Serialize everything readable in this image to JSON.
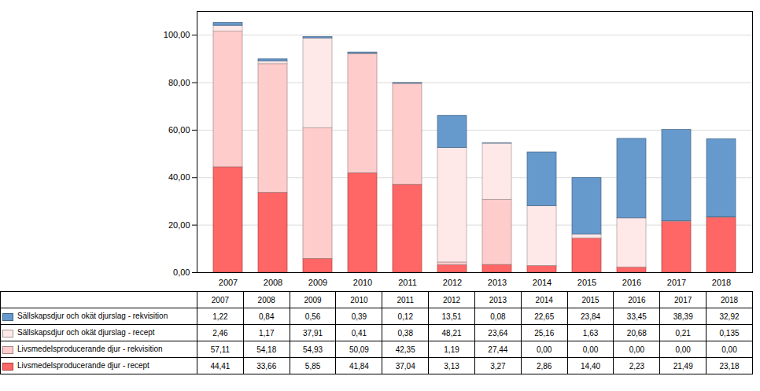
{
  "chart_data": {
    "type": "bar",
    "stacked": true,
    "categories": [
      "2007",
      "2008",
      "2009",
      "2010",
      "2011",
      "2012",
      "2013",
      "2014",
      "2015",
      "2016",
      "2017",
      "2018"
    ],
    "series": [
      {
        "name": "Livsmedelsproducerande djur - recept",
        "color": "#FF6666",
        "values": [
          44.41,
          33.66,
          5.85,
          41.84,
          37.04,
          3.13,
          3.27,
          2.86,
          14.4,
          2.23,
          21.49,
          23.18
        ],
        "value_labels": [
          "44,41",
          "33,66",
          "5,85",
          "41,84",
          "37,04",
          "3,13",
          "3,27",
          "2,86",
          "14,40",
          "2,23",
          "21,49",
          "23,18"
        ]
      },
      {
        "name": "Livsmedelsproducerande djur - rekvisition",
        "color": "#FFCCCC",
        "values": [
          57.11,
          54.18,
          54.93,
          50.09,
          42.35,
          1.19,
          27.44,
          0.0,
          0.0,
          0.0,
          0.0,
          0.0
        ],
        "value_labels": [
          "57,11",
          "54,18",
          "54,93",
          "50,09",
          "42,35",
          "1,19",
          "27,44",
          "0,00",
          "0,00",
          "0,00",
          "0,00",
          "0,00"
        ]
      },
      {
        "name": "Sällskapsdjur och okät djurslag - recept",
        "color": "#FFE8E8",
        "values": [
          2.46,
          1.17,
          37.91,
          0.41,
          0.38,
          48.21,
          23.64,
          25.16,
          1.63,
          20.68,
          0.21,
          0.135
        ],
        "value_labels": [
          "2,46",
          "1,17",
          "37,91",
          "0,41",
          "0,38",
          "48,21",
          "23,64",
          "25,16",
          "1,63",
          "20,68",
          "0,21",
          "0,135"
        ]
      },
      {
        "name": "Sällskapsdjur och okät djurslag - rekvisition",
        "color": "#6699CC",
        "values": [
          1.22,
          0.84,
          0.56,
          0.39,
          0.12,
          13.51,
          0.08,
          22.65,
          23.84,
          33.45,
          38.39,
          32.92
        ],
        "value_labels": [
          "1,22",
          "0,84",
          "0,56",
          "0,39",
          "0,12",
          "13,51",
          "0,08",
          "22,65",
          "23,84",
          "33,45",
          "38,39",
          "32,92"
        ]
      }
    ],
    "ylim": [
      0,
      110
    ],
    "yticks": [
      {
        "value": 0,
        "label": "0,00"
      },
      {
        "value": 20,
        "label": "20,00"
      },
      {
        "value": 40,
        "label": "40,00"
      },
      {
        "value": 60,
        "label": "60,00"
      },
      {
        "value": 80,
        "label": "80,00"
      },
      {
        "value": 100,
        "label": "100,00"
      }
    ],
    "grid": true,
    "legend": "bottom"
  }
}
